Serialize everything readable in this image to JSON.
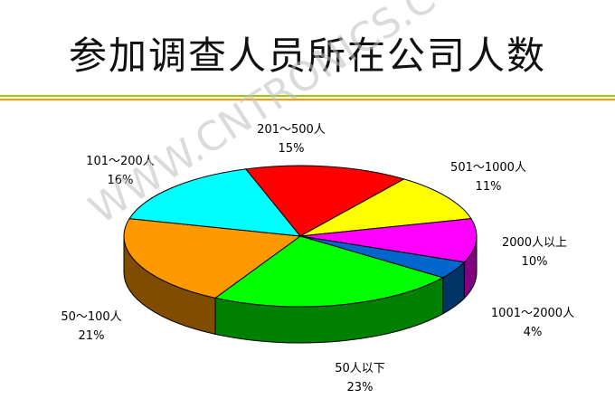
{
  "chart_data": {
    "type": "pie",
    "style": "3d",
    "title": "参加调查人员所在公司人数",
    "watermark": "WWW.CNTRONICS.COM",
    "slices": [
      {
        "label": "201～500人",
        "value": 15,
        "value_label": "15%",
        "color": "#ff0000",
        "side": "#990000"
      },
      {
        "label": "501～1000人",
        "value": 11,
        "value_label": "11%",
        "color": "#ffff00",
        "side": "#999900"
      },
      {
        "label": "2000人以上",
        "value": 10,
        "value_label": "10%",
        "color": "#ff00ff",
        "side": "#800080"
      },
      {
        "label": "1001～2000人",
        "value": 4,
        "value_label": "4%",
        "color": "#0066cc",
        "side": "#003366"
      },
      {
        "label": "50人以下",
        "value": 23,
        "value_label": "23%",
        "color": "#00ff00",
        "side": "#008000"
      },
      {
        "label": "50～100人",
        "value": 21,
        "value_label": "21%",
        "color": "#ff9900",
        "side": "#7f4c00"
      },
      {
        "label": "101～200人",
        "value": 16,
        "value_label": "16%",
        "color": "#00ffff",
        "side": "#008080"
      }
    ]
  },
  "colors": {
    "rule_green": "#99cc00",
    "rule_orange": "#ff9900"
  }
}
